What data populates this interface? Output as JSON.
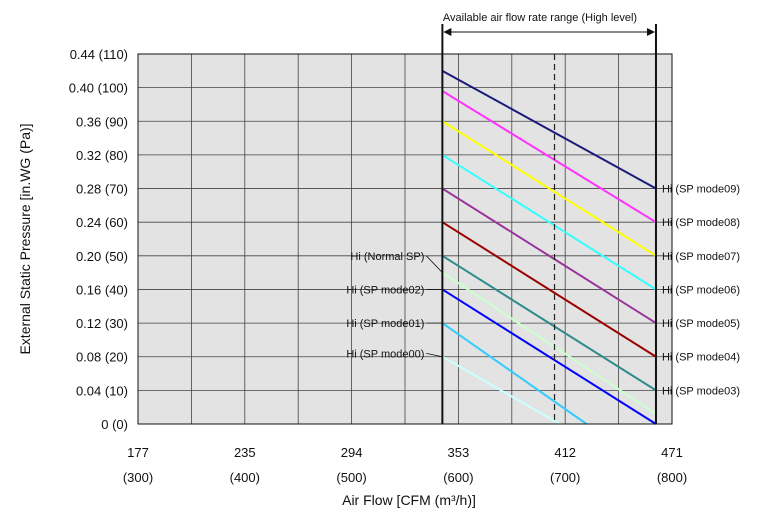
{
  "chart_data": {
    "type": "line",
    "xlabel": "Air Flow [CFM (m³/h)]",
    "ylabel": "External Static Pressure [in.WG (Pa)]",
    "xlim": [
      300,
      800
    ],
    "ylim": [
      0,
      110
    ],
    "x_ticks": [
      {
        "value": 300,
        "top": "177",
        "bottom": "(300)"
      },
      {
        "value": 400,
        "top": "235",
        "bottom": "(400)"
      },
      {
        "value": 500,
        "top": "294",
        "bottom": "(500)"
      },
      {
        "value": 600,
        "top": "353",
        "bottom": "(600)"
      },
      {
        "value": 700,
        "top": "412",
        "bottom": "(700)"
      },
      {
        "value": 800,
        "top": "471",
        "bottom": "(800)"
      }
    ],
    "y_ticks": [
      {
        "value": 0,
        "label": "0 (0)"
      },
      {
        "value": 10,
        "label": "0.04 (10)"
      },
      {
        "value": 20,
        "label": "0.08 (20)"
      },
      {
        "value": 30,
        "label": "0.12 (30)"
      },
      {
        "value": 40,
        "label": "0.16 (40)"
      },
      {
        "value": 50,
        "label": "0.20 (50)"
      },
      {
        "value": 60,
        "label": "0.24 (60)"
      },
      {
        "value": 70,
        "label": "0.28 (70)"
      },
      {
        "value": 80,
        "label": "0.32 (80)"
      },
      {
        "value": 90,
        "label": "0.36 (90)"
      },
      {
        "value": 100,
        "label": "0.40 (100)"
      },
      {
        "value": 110,
        "label": "0.44 (110)"
      }
    ],
    "grid": true,
    "available_range": {
      "label": "Available air flow rate range (High level)",
      "x_start": 585,
      "x_end": 785
    },
    "dashed_line_x": 690,
    "series": [
      {
        "name": "Hi (SP mode09)",
        "color": "#1a1a7a",
        "x": [
          585,
          785
        ],
        "y": [
          105,
          70
        ]
      },
      {
        "name": "Hi (SP mode08)",
        "color": "#ff33ff",
        "x": [
          585,
          785
        ],
        "y": [
          99,
          60
        ]
      },
      {
        "name": "Hi (SP mode07)",
        "color": "#ffff00",
        "x": [
          585,
          785
        ],
        "y": [
          90,
          50
        ]
      },
      {
        "name": "Hi (SP mode06)",
        "color": "#33ffff",
        "x": [
          585,
          785
        ],
        "y": [
          80,
          40
        ]
      },
      {
        "name": "Hi (SP mode05)",
        "color": "#993399",
        "x": [
          585,
          785
        ],
        "y": [
          70,
          30
        ]
      },
      {
        "name": "Hi (SP mode04)",
        "color": "#990000",
        "x": [
          585,
          785
        ],
        "y": [
          60,
          20
        ]
      },
      {
        "name": "Hi (SP mode03)",
        "color": "#2e8b8b",
        "x": [
          585,
          785
        ],
        "y": [
          50,
          10
        ]
      },
      {
        "name": "Hi (Normal SP)",
        "color": "#ccffcc",
        "x": [
          585,
          785
        ],
        "y": [
          45,
          3
        ]
      },
      {
        "name": "Hi (SP mode02)",
        "color": "#0000ff",
        "x": [
          585,
          785
        ],
        "y": [
          40,
          0
        ]
      },
      {
        "name": "Hi (SP mode01)",
        "color": "#33ccff",
        "x": [
          585,
          720
        ],
        "y": [
          30,
          0
        ]
      },
      {
        "name": "Hi (SP mode00)",
        "color": "#ccffff",
        "x": [
          585,
          695
        ],
        "y": [
          20,
          0
        ]
      }
    ],
    "series_labels": [
      {
        "series": "Hi (SP mode09)",
        "side": "right",
        "y": 70
      },
      {
        "series": "Hi (SP mode08)",
        "side": "right",
        "y": 60
      },
      {
        "series": "Hi (SP mode07)",
        "side": "right",
        "y": 50
      },
      {
        "series": "Hi (SP mode06)",
        "side": "right",
        "y": 40
      },
      {
        "series": "Hi (SP mode05)",
        "side": "right",
        "y": 30
      },
      {
        "series": "Hi (SP mode04)",
        "side": "right",
        "y": 20
      },
      {
        "series": "Hi (SP mode03)",
        "side": "right",
        "y": 10
      },
      {
        "series": "Hi (Normal SP)",
        "side": "left",
        "y": 50
      },
      {
        "series": "Hi (SP mode02)",
        "side": "left",
        "y": 40
      },
      {
        "series": "Hi (SP mode01)",
        "side": "left",
        "y": 30
      },
      {
        "series": "Hi (SP mode00)",
        "side": "left",
        "y": 21
      }
    ]
  }
}
